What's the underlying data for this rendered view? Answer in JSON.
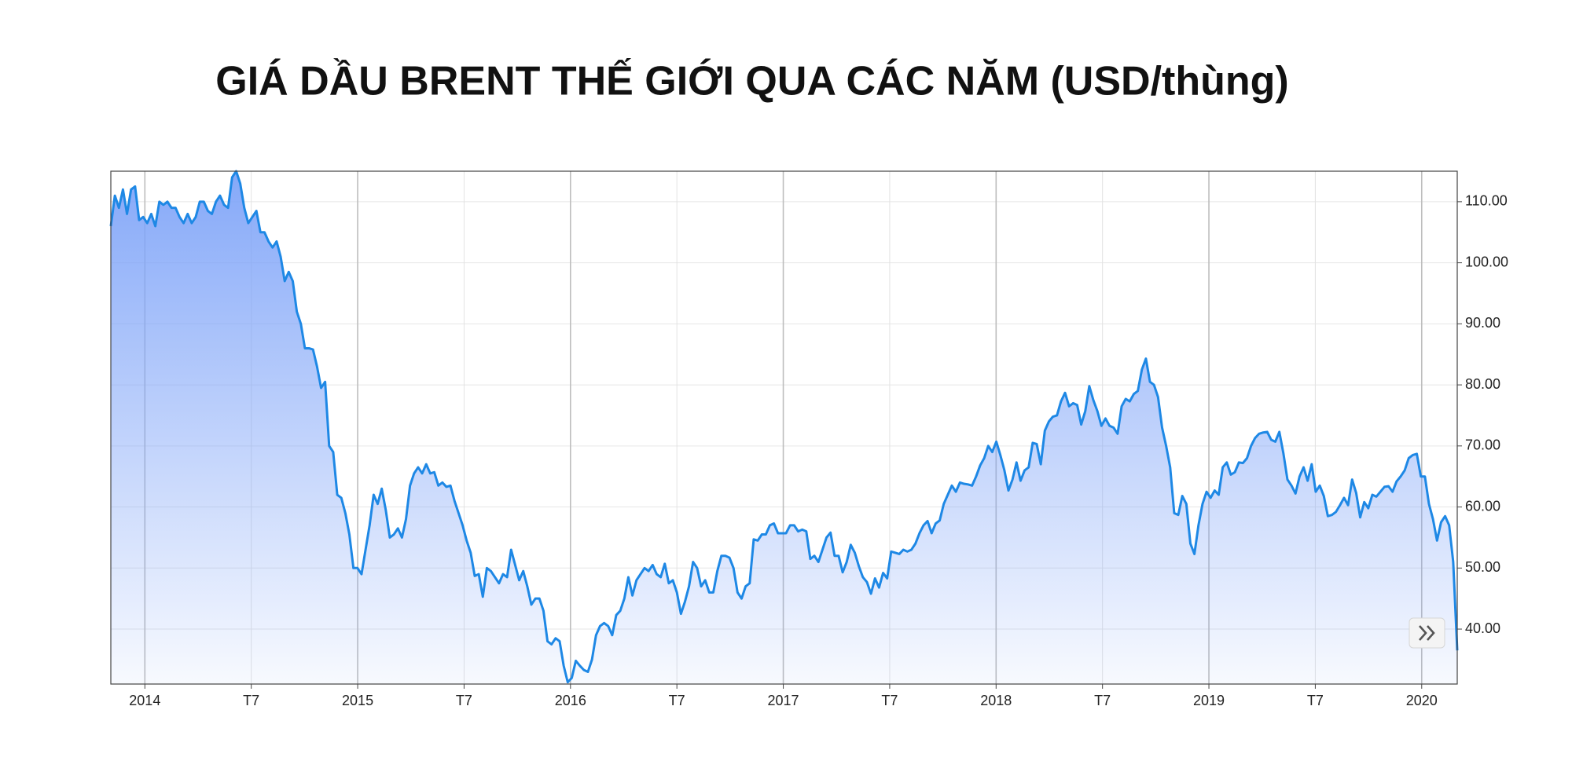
{
  "chart_data": {
    "type": "area",
    "title": "GIÁ DẦU BRENT THẾ GIỚI QUA CÁC NĂM (USD/thùng)",
    "color": "#1e88e5",
    "fill_color": "#7fa4f8",
    "grid": true,
    "y_axis_side": "right",
    "xlim": [
      2013.84,
      2020.167
    ],
    "ylim": [
      31,
      115
    ],
    "xticks": [
      {
        "value": 2014,
        "label": "2014"
      },
      {
        "value": 2014.5,
        "label": "T7"
      },
      {
        "value": 2015,
        "label": "2015"
      },
      {
        "value": 2015.5,
        "label": "T7"
      },
      {
        "value": 2016,
        "label": "2016"
      },
      {
        "value": 2016.5,
        "label": "T7"
      },
      {
        "value": 2017,
        "label": "2017"
      },
      {
        "value": 2017.5,
        "label": "T7"
      },
      {
        "value": 2018,
        "label": "2018"
      },
      {
        "value": 2018.5,
        "label": "T7"
      },
      {
        "value": 2019,
        "label": "2019"
      },
      {
        "value": 2019.5,
        "label": "T7"
      },
      {
        "value": 2020,
        "label": "2020"
      }
    ],
    "yticks": [
      {
        "value": 40,
        "label": "40.00"
      },
      {
        "value": 50,
        "label": "50.00"
      },
      {
        "value": 60,
        "label": "60.00"
      },
      {
        "value": 70,
        "label": "70.00"
      },
      {
        "value": 80,
        "label": "80.00"
      },
      {
        "value": 90,
        "label": "90.00"
      },
      {
        "value": 100,
        "label": "100.00"
      },
      {
        "value": 110,
        "label": "110.00"
      }
    ],
    "x": [
      2013.84,
      2013.859,
      2013.878,
      2013.897,
      2013.916,
      2013.935,
      2013.954,
      2013.973,
      2013.992,
      2014.011,
      2014.03,
      2014.049,
      2014.068,
      2014.087,
      2014.106,
      2014.125,
      2014.144,
      2014.163,
      2014.182,
      2014.201,
      2014.22,
      2014.239,
      2014.258,
      2014.277,
      2014.296,
      2014.315,
      2014.334,
      2014.353,
      2014.372,
      2014.391,
      2014.41,
      2014.429,
      2014.448,
      2014.467,
      2014.486,
      2014.505,
      2014.524,
      2014.543,
      2014.562,
      2014.581,
      2014.6,
      2014.619,
      2014.638,
      2014.657,
      2014.676,
      2014.695,
      2014.714,
      2014.733,
      2014.752,
      2014.771,
      2014.79,
      2014.809,
      2014.828,
      2014.847,
      2014.866,
      2014.885,
      2014.904,
      2014.923,
      2014.942,
      2014.961,
      2014.98,
      2014.999,
      2015.018,
      2015.037,
      2015.056,
      2015.075,
      2015.094,
      2015.113,
      2015.132,
      2015.151,
      2015.17,
      2015.189,
      2015.208,
      2015.227,
      2015.246,
      2015.265,
      2015.284,
      2015.303,
      2015.322,
      2015.341,
      2015.36,
      2015.379,
      2015.398,
      2015.417,
      2015.436,
      2015.455,
      2015.474,
      2015.493,
      2015.512,
      2015.531,
      2015.55,
      2015.569,
      2015.588,
      2015.607,
      2015.626,
      2015.645,
      2015.664,
      2015.683,
      2015.702,
      2015.721,
      2015.74,
      2015.759,
      2015.778,
      2015.797,
      2015.816,
      2015.835,
      2015.854,
      2015.873,
      2015.892,
      2015.911,
      2015.93,
      2015.949,
      2015.968,
      2015.987,
      2016.006,
      2016.025,
      2016.044,
      2016.063,
      2016.082,
      2016.101,
      2016.12,
      2016.139,
      2016.158,
      2016.177,
      2016.196,
      2016.215,
      2016.234,
      2016.253,
      2016.272,
      2016.291,
      2016.31,
      2016.329,
      2016.348,
      2016.367,
      2016.386,
      2016.405,
      2016.424,
      2016.443,
      2016.462,
      2016.481,
      2016.5,
      2016.519,
      2016.538,
      2016.557,
      2016.576,
      2016.595,
      2016.614,
      2016.633,
      2016.652,
      2016.671,
      2016.69,
      2016.709,
      2016.728,
      2016.747,
      2016.766,
      2016.785,
      2016.804,
      2016.823,
      2016.842,
      2016.861,
      2016.88,
      2016.899,
      2016.918,
      2016.937,
      2016.956,
      2016.975,
      2016.994,
      2017.013,
      2017.032,
      2017.051,
      2017.07,
      2017.089,
      2017.108,
      2017.127,
      2017.146,
      2017.165,
      2017.184,
      2017.203,
      2017.222,
      2017.241,
      2017.26,
      2017.279,
      2017.298,
      2017.317,
      2017.336,
      2017.355,
      2017.374,
      2017.393,
      2017.412,
      2017.431,
      2017.45,
      2017.469,
      2017.488,
      2017.507,
      2017.526,
      2017.545,
      2017.564,
      2017.583,
      2017.602,
      2017.621,
      2017.64,
      2017.659,
      2017.678,
      2017.697,
      2017.716,
      2017.735,
      2017.754,
      2017.773,
      2017.792,
      2017.811,
      2017.83,
      2017.849,
      2017.868,
      2017.887,
      2017.906,
      2017.925,
      2017.944,
      2017.963,
      2017.982,
      2018.001,
      2018.02,
      2018.039,
      2018.058,
      2018.077,
      2018.096,
      2018.115,
      2018.134,
      2018.153,
      2018.172,
      2018.191,
      2018.21,
      2018.229,
      2018.248,
      2018.267,
      2018.286,
      2018.305,
      2018.324,
      2018.343,
      2018.362,
      2018.381,
      2018.4,
      2018.419,
      2018.438,
      2018.457,
      2018.476,
      2018.495,
      2018.514,
      2018.533,
      2018.552,
      2018.571,
      2018.59,
      2018.609,
      2018.628,
      2018.647,
      2018.666,
      2018.685,
      2018.704,
      2018.723,
      2018.742,
      2018.761,
      2018.78,
      2018.799,
      2018.818,
      2018.837,
      2018.856,
      2018.875,
      2018.894,
      2018.913,
      2018.932,
      2018.951,
      2018.97,
      2018.989,
      2019.008,
      2019.027,
      2019.046,
      2019.065,
      2019.084,
      2019.103,
      2019.122,
      2019.141,
      2019.16,
      2019.179,
      2019.198,
      2019.217,
      2019.236,
      2019.255,
      2019.274,
      2019.293,
      2019.312,
      2019.331,
      2019.35,
      2019.369,
      2019.388,
      2019.407,
      2019.426,
      2019.445,
      2019.464,
      2019.483,
      2019.502,
      2019.521,
      2019.54,
      2019.559,
      2019.578,
      2019.597,
      2019.616,
      2019.635,
      2019.654,
      2019.673,
      2019.692,
      2019.711,
      2019.73,
      2019.749,
      2019.768,
      2019.787,
      2019.806,
      2019.825,
      2019.844,
      2019.863,
      2019.882,
      2019.901,
      2019.92,
      2019.939,
      2019.958,
      2019.977,
      2019.996,
      2020.015,
      2020.034,
      2020.053,
      2020.072,
      2020.091,
      2020.11,
      2020.129,
      2020.148,
      2020.167
    ],
    "values": [
      106,
      111,
      109,
      112,
      108,
      112,
      112.5,
      107,
      107.5,
      106.5,
      108,
      106,
      110,
      109.5,
      110,
      109,
      109,
      107.5,
      106.5,
      108,
      106.5,
      107.5,
      110,
      110,
      108.5,
      108,
      110,
      111,
      109.5,
      109,
      114,
      115,
      113,
      109,
      106.5,
      107.5,
      108.5,
      105,
      105,
      103.5,
      102.5,
      103.5,
      101,
      97,
      98.5,
      97,
      92,
      90,
      86,
      86,
      85.8,
      83,
      79.5,
      80.5,
      70,
      69,
      62,
      61.5,
      59,
      55.5,
      50,
      50,
      49,
      53,
      57,
      62,
      60.5,
      63,
      59.5,
      55,
      55.5,
      56.5,
      55,
      58,
      63.5,
      65.5,
      66.5,
      65.5,
      67,
      65.5,
      65.7,
      63.5,
      64,
      63.3,
      63.5,
      61,
      59,
      57,
      54.5,
      52.5,
      48.7,
      49,
      45.3,
      50,
      49.5,
      48.5,
      47.5,
      49,
      48.5,
      53,
      50.5,
      48,
      49.5,
      47,
      44,
      45,
      45,
      43,
      38,
      37.5,
      38.5,
      38,
      34,
      31.3,
      32,
      34.8,
      34,
      33.3,
      33,
      35,
      39,
      40.5,
      41,
      40.5,
      39,
      42.3,
      43,
      45,
      48.5,
      45.5,
      48,
      49,
      50,
      49.5,
      50.5,
      49,
      48.5,
      50.7,
      47.5,
      48,
      46,
      42.5,
      44.5,
      47,
      51,
      50,
      47,
      48,
      46,
      46,
      49.5,
      52,
      52,
      51.7,
      50,
      46,
      45,
      47,
      47.5,
      54.7,
      54.5,
      55.5,
      55.5,
      57,
      57.3,
      55.7,
      55.7,
      55.7,
      57,
      57,
      56,
      56.3,
      56,
      51.5,
      52,
      51,
      53,
      55,
      55.8,
      52,
      52,
      49.3,
      51,
      53.8,
      52.5,
      50.3,
      48.5,
      47.7,
      45.8,
      48.3,
      46.8,
      49.2,
      48.3,
      52.7,
      52.5,
      52.3,
      53,
      52.7,
      53,
      54,
      55.7,
      57,
      57.7,
      55.7,
      57.3,
      57.8,
      60.5,
      62,
      63.5,
      62.5,
      64,
      63.8,
      63.7,
      63.5,
      65,
      66.8,
      68,
      70,
      69,
      70.7,
      68.5,
      66,
      62.7,
      64.5,
      67.3,
      64.3,
      66,
      66.5,
      70.5,
      70.3,
      67,
      72.5,
      74,
      74.8,
      75,
      77.3,
      78.7,
      76.5,
      77,
      76.7,
      73.5,
      75.7,
      79.8,
      77.5,
      75.7,
      73.3,
      74.5,
      73.3,
      73,
      72,
      76.5,
      77.7,
      77.3,
      78.5,
      79,
      82.5,
      84.3,
      80.5,
      80,
      78,
      73,
      70,
      66.5,
      59,
      58.7,
      61.8,
      60.5,
      54,
      52.3,
      57,
      60.5,
      62.5,
      61.5,
      62.7,
      62,
      66.5,
      67.3,
      65.3,
      65.7,
      67.3,
      67.2,
      68,
      70,
      71.3,
      72,
      72.2,
      72.3,
      71,
      70.7,
      72.3,
      68.8,
      64.5,
      63.5,
      62.2,
      65,
      66.5,
      64.3,
      67,
      62.5,
      63.5,
      61.8,
      58.5,
      58.7,
      59.2,
      60.3,
      61.5,
      60.3,
      64.5,
      62.3,
      58.3,
      60.8,
      59.8,
      62,
      61.7,
      62.5,
      63.3,
      63.4,
      62.5,
      64.2,
      65,
      66,
      68,
      68.5,
      68.7,
      65,
      65,
      60.5,
      58,
      54.5,
      57.5,
      58.5,
      57,
      51,
      36.5
    ]
  }
}
